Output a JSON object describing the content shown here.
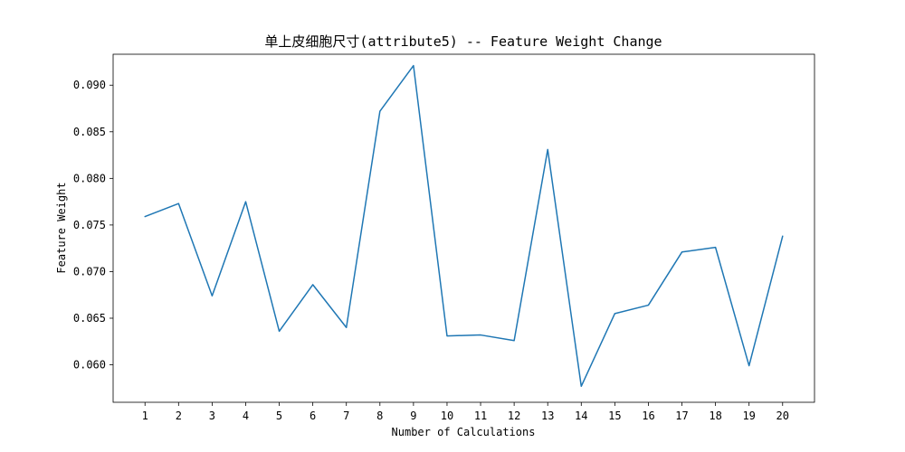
{
  "chart_data": {
    "type": "line",
    "title": "单上皮细胞尺寸(attribute5) -- Feature Weight Change",
    "xlabel": "Number of Calculations",
    "ylabel": "Feature Weight",
    "x": [
      1,
      2,
      3,
      4,
      5,
      6,
      7,
      8,
      9,
      10,
      11,
      12,
      13,
      14,
      15,
      16,
      17,
      18,
      19,
      20
    ],
    "x_tick_labels": [
      "1",
      "2",
      "3",
      "4",
      "5",
      "6",
      "7",
      "8",
      "9",
      "10",
      "11",
      "12",
      "13",
      "14",
      "15",
      "16",
      "17",
      "18",
      "19",
      "20"
    ],
    "series": [
      {
        "values": [
          0.0759,
          0.0773,
          0.0674,
          0.0775,
          0.0636,
          0.0686,
          0.064,
          0.0872,
          0.0921,
          0.0631,
          0.0632,
          0.0626,
          0.0831,
          0.0577,
          0.0655,
          0.0664,
          0.0721,
          0.0726,
          0.0599,
          0.0738
        ],
        "color": "#1f77b4"
      }
    ],
    "xlim": [
      0.05,
      20.95
    ],
    "ylim": [
      0.05598,
      0.09332
    ],
    "y_ticks": [
      0.06,
      0.065,
      0.07,
      0.075,
      0.08,
      0.085,
      0.09
    ],
    "y_tick_labels": [
      "0.060",
      "0.065",
      "0.070",
      "0.075",
      "0.080",
      "0.085",
      "0.090"
    ],
    "grid": false,
    "legend": "none"
  }
}
